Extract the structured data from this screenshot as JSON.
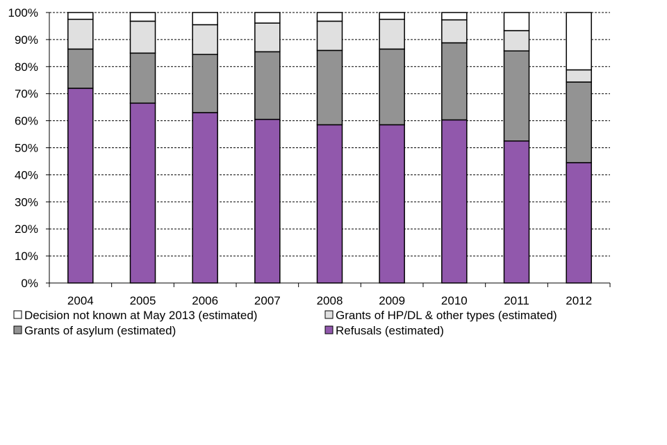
{
  "chart_data": {
    "type": "bar",
    "stacked": true,
    "percent": true,
    "categories": [
      "2004",
      "2005",
      "2006",
      "2007",
      "2008",
      "2009",
      "2010",
      "2011",
      "2012"
    ],
    "ylim": [
      0,
      100
    ],
    "yticks": [
      "0%",
      "10%",
      "20%",
      "30%",
      "40%",
      "50%",
      "60%",
      "70%",
      "80%",
      "90%",
      "100%"
    ],
    "grid": true,
    "legend_position": "bottom",
    "series": [
      {
        "name": "Refusals (estimated)",
        "color": "#9158ac",
        "values": [
          72,
          66.5,
          63,
          60.5,
          58.5,
          58.5,
          60.3,
          52.5,
          44.5
        ]
      },
      {
        "name": "Grants of asylum (estimated)",
        "color": "#939393",
        "values": [
          14.5,
          18.5,
          21.5,
          25,
          27.5,
          28,
          28.5,
          33.3,
          29.8
        ]
      },
      {
        "name": "Grants of HP/DL & other types (estimated)",
        "color": "#e0e0e0",
        "values": [
          11,
          11.8,
          11,
          10.6,
          10.8,
          11,
          8.5,
          7.5,
          4.5
        ]
      },
      {
        "name": "Decision not known at May 2013 (estimated)",
        "color": "#ffffff",
        "values": [
          2.5,
          3.2,
          4.5,
          3.9,
          3.2,
          2.5,
          2.7,
          6.7,
          21.2
        ]
      }
    ],
    "legend_order": [
      "Decision not known at May 2013 (estimated)",
      "Grants of HP/DL & other types (estimated)",
      "Grants of asylum (estimated)",
      "Refusals (estimated)"
    ]
  }
}
